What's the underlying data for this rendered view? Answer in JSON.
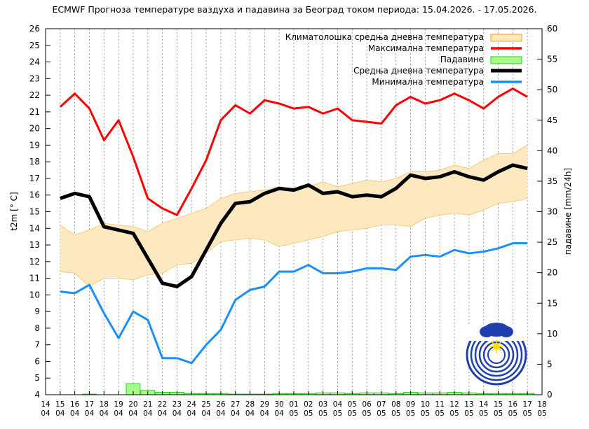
{
  "chart_data": {
    "type": "line",
    "title": "ECMWF Прогноза температуре ваздуха и падавина за Београд током периода: 15.04.2026. - 17.05.2026.",
    "ylabel": "t2m [° C]",
    "y2label": "падавине [mm/24h]",
    "ylim": [
      4,
      26
    ],
    "y2lim": [
      0,
      60
    ],
    "yticks": [
      4,
      5,
      6,
      7,
      8,
      9,
      10,
      11,
      12,
      13,
      14,
      15,
      16,
      17,
      18,
      19,
      20,
      21,
      22,
      23,
      24,
      25,
      26
    ],
    "y2ticks": [
      0,
      5,
      10,
      15,
      20,
      25,
      30,
      35,
      40,
      45,
      50,
      55,
      60
    ],
    "x_labels": [
      [
        "14",
        "04"
      ],
      [
        "15",
        "04"
      ],
      [
        "16",
        "04"
      ],
      [
        "17",
        "04"
      ],
      [
        "18",
        "04"
      ],
      [
        "19",
        "04"
      ],
      [
        "20",
        "04"
      ],
      [
        "21",
        "04"
      ],
      [
        "22",
        "04"
      ],
      [
        "23",
        "04"
      ],
      [
        "24",
        "04"
      ],
      [
        "25",
        "04"
      ],
      [
        "26",
        "04"
      ],
      [
        "27",
        "04"
      ],
      [
        "28",
        "04"
      ],
      [
        "29",
        "04"
      ],
      [
        "30",
        "04"
      ],
      [
        "01",
        "05"
      ],
      [
        "02",
        "05"
      ],
      [
        "03",
        "05"
      ],
      [
        "04",
        "05"
      ],
      [
        "05",
        "05"
      ],
      [
        "06",
        "05"
      ],
      [
        "07",
        "05"
      ],
      [
        "08",
        "05"
      ],
      [
        "09",
        "05"
      ],
      [
        "10",
        "05"
      ],
      [
        "11",
        "05"
      ],
      [
        "12",
        "05"
      ],
      [
        "13",
        "05"
      ],
      [
        "14",
        "05"
      ],
      [
        "15",
        "05"
      ],
      [
        "16",
        "05"
      ],
      [
        "17",
        "05"
      ],
      [
        "18",
        "05"
      ]
    ],
    "x": [
      "15.04",
      "16.04",
      "17.04",
      "18.04",
      "19.04",
      "20.04",
      "21.04",
      "22.04",
      "23.04",
      "24.04",
      "25.04",
      "26.04",
      "27.04",
      "28.04",
      "29.04",
      "30.04",
      "01.05",
      "02.05",
      "03.05",
      "04.05",
      "05.05",
      "06.05",
      "07.05",
      "08.05",
      "09.05",
      "10.05",
      "11.05",
      "12.05",
      "13.05",
      "14.05",
      "15.05",
      "16.05",
      "17.05"
    ],
    "grid": "vertical dashed",
    "legend_position": "top-right",
    "climatology_band": {
      "name": "Климатолошка средња дневна температура",
      "color": "#fde8c0",
      "edge_color": "#f0a020",
      "upper": [
        14.2,
        13.6,
        13.9,
        14.3,
        14.2,
        14.1,
        13.8,
        14.3,
        14.6,
        14.9,
        15.2,
        15.8,
        16.1,
        16.2,
        16.3,
        16.5,
        16.3,
        16.5,
        16.8,
        16.5,
        16.7,
        16.9,
        16.8,
        17.0,
        17.4,
        17.4,
        17.5,
        17.8,
        17.6,
        18.1,
        18.5,
        18.5,
        19.0
      ],
      "lower": [
        11.4,
        11.3,
        10.5,
        11.0,
        11.0,
        10.9,
        11.2,
        11.3,
        11.8,
        11.9,
        12.5,
        13.2,
        13.3,
        13.4,
        13.3,
        12.9,
        13.1,
        13.3,
        13.5,
        13.8,
        13.9,
        14.0,
        14.2,
        14.2,
        14.1,
        14.6,
        14.8,
        14.9,
        14.8,
        15.1,
        15.5,
        15.6,
        15.8
      ]
    },
    "series": [
      {
        "name": "Максимална температура",
        "color": "#ff0000",
        "values": [
          21.3,
          22.1,
          21.2,
          19.3,
          20.5,
          18.3,
          15.8,
          15.2,
          14.8,
          16.4,
          18.1,
          20.5,
          21.4,
          20.9,
          21.7,
          21.5,
          21.2,
          21.3,
          20.9,
          21.2,
          20.5,
          20.4,
          20.3,
          21.4,
          21.9,
          21.5,
          21.7,
          22.1,
          21.7,
          21.2,
          21.9,
          22.4,
          21.9
        ]
      },
      {
        "name": "Средња дневна температура",
        "color": "#000000",
        "values": [
          15.8,
          16.1,
          15.9,
          14.1,
          13.9,
          13.7,
          12.2,
          10.7,
          10.5,
          11.1,
          12.7,
          14.3,
          15.5,
          15.6,
          16.1,
          16.4,
          16.3,
          16.6,
          16.1,
          16.2,
          15.9,
          16.0,
          15.9,
          16.4,
          17.2,
          17.0,
          17.1,
          17.4,
          17.1,
          16.9,
          17.4,
          17.8,
          17.6
        ]
      },
      {
        "name": "Минимална температура",
        "color": "#1a8fff",
        "values": [
          10.2,
          10.1,
          10.6,
          8.9,
          7.4,
          9.0,
          8.5,
          6.2,
          6.2,
          5.9,
          7.0,
          7.9,
          9.7,
          10.3,
          10.5,
          11.4,
          11.4,
          11.8,
          11.3,
          11.3,
          11.4,
          11.6,
          11.6,
          11.5,
          12.3,
          12.4,
          12.3,
          12.7,
          12.5,
          12.6,
          12.8,
          13.1,
          13.1
        ]
      }
    ],
    "precipitation": {
      "name": "Падавине",
      "color": "#aaff88",
      "edge_color": "#22cc22",
      "values": [
        0,
        0,
        0.1,
        0,
        0,
        1.8,
        0.7,
        0.4,
        0.4,
        0.2,
        0.2,
        0.2,
        0.1,
        0.1,
        0.1,
        0.2,
        0.2,
        0.2,
        0.3,
        0.3,
        0.2,
        0.3,
        0.3,
        0.2,
        0.4,
        0.3,
        0.3,
        0.4,
        0.3,
        0.2,
        0.2,
        0.2,
        0.2
      ]
    }
  }
}
